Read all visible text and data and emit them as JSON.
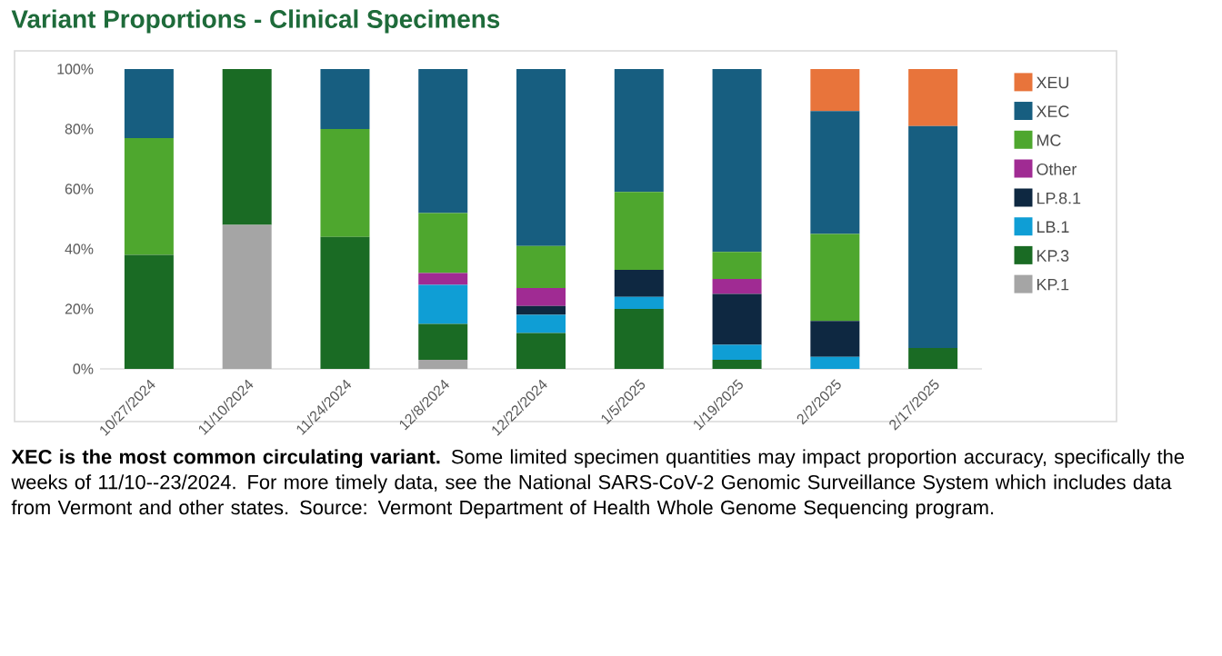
{
  "chart_data": {
    "type": "bar",
    "stacked": true,
    "title": "Variant Proportions - Clinical Specimens",
    "categories": [
      "10/27/2024",
      "11/10/2024",
      "11/24/2024",
      "12/8/2024",
      "12/22/2024",
      "1/5/2025",
      "1/19/2025",
      "2/2/2025",
      "2/17/2025"
    ],
    "series": [
      {
        "name": "KP.1",
        "color": "#a5a5a5",
        "values": [
          0,
          48,
          0,
          3,
          0,
          0,
          0,
          0,
          0
        ]
      },
      {
        "name": "KP.3",
        "color": "#1a6b24",
        "values": [
          38,
          52,
          44,
          12,
          12,
          20,
          3,
          0,
          7
        ]
      },
      {
        "name": "LB.1",
        "color": "#0f9ed5",
        "values": [
          0,
          0,
          0,
          13,
          6,
          4,
          5,
          4,
          0
        ]
      },
      {
        "name": "LP.8.1",
        "color": "#0e2841",
        "values": [
          0,
          0,
          0,
          0,
          3,
          9,
          17,
          12,
          0
        ]
      },
      {
        "name": "Other",
        "color": "#a02b93",
        "values": [
          0,
          0,
          0,
          4,
          6,
          0,
          5,
          0,
          0
        ]
      },
      {
        "name": "MC",
        "color": "#4ea72e",
        "values": [
          39,
          0,
          36,
          20,
          14,
          26,
          9,
          29,
          0
        ]
      },
      {
        "name": "XEC",
        "color": "#175e80",
        "values": [
          23,
          0,
          20,
          48,
          59,
          41,
          61,
          41,
          74
        ]
      },
      {
        "name": "XEU",
        "color": "#e8743b",
        "values": [
          0,
          0,
          0,
          0,
          0,
          0,
          0,
          14,
          19
        ]
      }
    ],
    "ylim": [
      0,
      100
    ],
    "yticks": [
      {
        "value": 0,
        "label": "0%"
      },
      {
        "value": 20,
        "label": "20%"
      },
      {
        "value": 40,
        "label": "40%"
      },
      {
        "value": 60,
        "label": "60%"
      },
      {
        "value": 80,
        "label": "80%"
      },
      {
        "value": 100,
        "label": "100%"
      }
    ],
    "grid": false,
    "legend": "right",
    "annotations": [
      "**XEC is the most common circulating variant.** Some limited specimen quantities may impact proportion accuracy, specifically the weeks of 11/10--23/2024. For more timely data, see the National SARS-CoV-2 Genomic Surveillance System which includes data from Vermont and other states. Source: Vermont Department of Health Whole Genome Sequencing program."
    ]
  }
}
